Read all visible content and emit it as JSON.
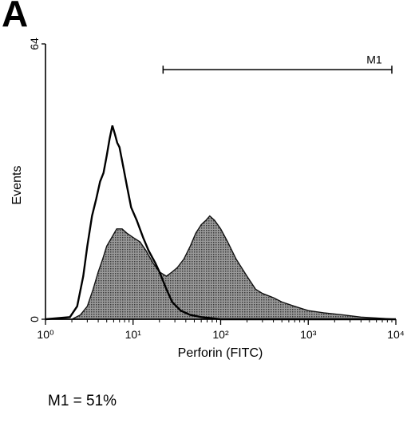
{
  "figure": {
    "panel_label": "A",
    "stat_text": "M1 = 51%"
  },
  "chart_data": {
    "type": "area",
    "title": "",
    "xlabel": "Perforin (FITC)",
    "ylabel": "Events",
    "x_scale": "log",
    "xlim": [
      1,
      10000
    ],
    "ylim": [
      0,
      64
    ],
    "x_ticks": [
      {
        "value": 1,
        "label": "10⁰"
      },
      {
        "value": 10,
        "label": "10¹"
      },
      {
        "value": 100,
        "label": "10²"
      },
      {
        "value": 1000,
        "label": "10³"
      },
      {
        "value": 10000,
        "label": "10⁴"
      }
    ],
    "y_ticks": [
      {
        "value": 0,
        "label": "0"
      },
      {
        "value": 64,
        "label": "64"
      }
    ],
    "grid": false,
    "marker": {
      "name": "M1",
      "x_start": 22,
      "x_end": 9000,
      "y": 58
    },
    "series": [
      {
        "style": "outline",
        "color": "#000000",
        "points": [
          [
            1.0,
            0
          ],
          [
            1.9,
            0.5
          ],
          [
            2.3,
            3
          ],
          [
            2.7,
            10
          ],
          [
            3.0,
            17
          ],
          [
            3.4,
            24
          ],
          [
            3.8,
            28
          ],
          [
            4.2,
            32
          ],
          [
            4.6,
            34
          ],
          [
            5.0,
            38
          ],
          [
            5.4,
            42
          ],
          [
            5.8,
            45
          ],
          [
            6.2,
            43
          ],
          [
            6.6,
            41
          ],
          [
            7.0,
            40
          ],
          [
            7.8,
            35
          ],
          [
            8.5,
            31
          ],
          [
            9.5,
            26
          ],
          [
            11,
            23
          ],
          [
            13,
            19
          ],
          [
            15,
            16
          ],
          [
            18,
            13
          ],
          [
            20,
            11
          ],
          [
            24,
            7
          ],
          [
            28,
            4
          ],
          [
            35,
            2
          ],
          [
            45,
            1
          ],
          [
            60,
            0.5
          ],
          [
            100,
            0
          ],
          [
            10000,
            0
          ]
        ]
      },
      {
        "style": "filled",
        "color": "#777777",
        "points": [
          [
            1.0,
            0
          ],
          [
            2.0,
            0
          ],
          [
            2.5,
            1
          ],
          [
            3.0,
            3
          ],
          [
            3.5,
            7
          ],
          [
            4.0,
            11
          ],
          [
            4.5,
            14
          ],
          [
            5.0,
            17
          ],
          [
            5.7,
            19
          ],
          [
            6.5,
            21
          ],
          [
            7.5,
            21
          ],
          [
            8.5,
            20
          ],
          [
            10,
            19
          ],
          [
            12,
            18
          ],
          [
            14,
            16
          ],
          [
            17,
            13
          ],
          [
            20,
            11
          ],
          [
            24,
            10
          ],
          [
            28,
            11
          ],
          [
            32,
            12
          ],
          [
            38,
            14
          ],
          [
            45,
            17
          ],
          [
            52,
            20
          ],
          [
            60,
            22
          ],
          [
            68,
            23
          ],
          [
            75,
            24
          ],
          [
            85,
            23
          ],
          [
            100,
            21
          ],
          [
            120,
            18
          ],
          [
            150,
            14
          ],
          [
            200,
            10
          ],
          [
            250,
            7
          ],
          [
            300,
            6
          ],
          [
            400,
            5
          ],
          [
            500,
            4
          ],
          [
            700,
            3
          ],
          [
            1000,
            2
          ],
          [
            1500,
            1.5
          ],
          [
            2500,
            1
          ],
          [
            4000,
            0.5
          ],
          [
            6000,
            0.3
          ],
          [
            10000,
            0
          ]
        ]
      }
    ]
  }
}
